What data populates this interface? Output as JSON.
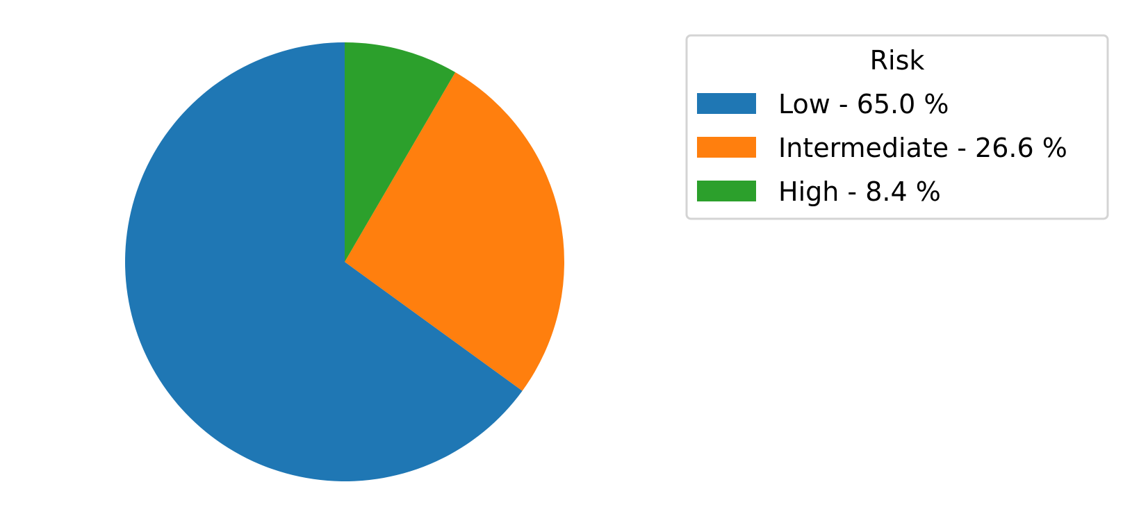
{
  "chart_data": {
    "type": "pie",
    "start_angle_deg": 90,
    "direction": "counterclockwise",
    "slices": [
      {
        "label": "Low",
        "value": 65.0,
        "color": "#1f77b4"
      },
      {
        "label": "Intermediate",
        "value": 26.6,
        "color": "#ff7f0e"
      },
      {
        "label": "High",
        "value": 8.4,
        "color": "#2ca02c"
      }
    ],
    "legend": {
      "title": "Risk",
      "placement": "upper-right",
      "entries": [
        {
          "text": "Low - 65.0 %",
          "color": "#1f77b4"
        },
        {
          "text": "Intermediate - 26.6 %",
          "color": "#ff7f0e"
        },
        {
          "text": "High - 8.4 %",
          "color": "#2ca02c"
        }
      ]
    }
  }
}
